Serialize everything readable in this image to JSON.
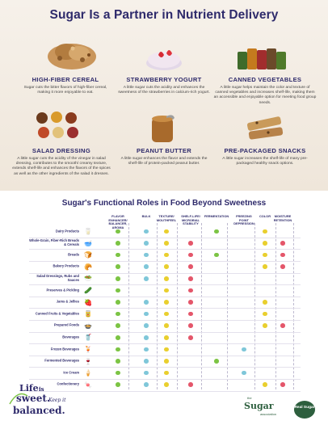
{
  "title": "Sugar Is a Partner in Nutrient Delivery",
  "tiles": [
    {
      "name": "HIGH-FIBER CEREAL",
      "desc": "Sugar cuts the bitter flavors of high-fiber cereal, making it more enjoyable to eat."
    },
    {
      "name": "STRAWBERRY YOGURT",
      "desc": "A little sugar cuts the acidity and enhances the sweetness of the strawberries in calcium-rich yogurt."
    },
    {
      "name": "CANNED VEGETABLES",
      "desc": "A little sugar helps maintain the color and texture of canned vegetables and increases shelf-life, making them an accessible and enjoyable option for meeting food group needs."
    },
    {
      "name": "SALAD DRESSING",
      "desc": "A little sugar cuts the acidity of the vinegar in salad dressing, contributes to the smooth/ creamy texture, extends shelf-life and enhances the flavors of the spices as well as the other ingredients of the salad it dresses."
    },
    {
      "name": "PEANUT BUTTER",
      "desc": "A little sugar enhances the flavor and extends the shelf-life of protein-packed peanut butter."
    },
    {
      "name": "PRE-PACKAGED SNACKS",
      "desc": "A little sugar increases the shelf-life of many pre-packaged healthy snack options."
    }
  ],
  "table": {
    "title": "Sugar's Functional Roles in Food Beyond Sweetness",
    "columns": [
      {
        "label": "FLAVOR ENHANCER/ BALANCER, AROMA",
        "color": "#7cc444"
      },
      {
        "label": "BULK",
        "color": "#7fc7d9"
      },
      {
        "label": "TEXTURE/ MOUTHFEEL",
        "color": "#e9cf2e"
      },
      {
        "label": "SHELF-LIFE/ MICROBIAL STABILITY",
        "color": "#e4566a"
      },
      {
        "label": "FERMENTATION",
        "color": "#7cc444"
      },
      {
        "label": "FREEZING POINT DEPRESSION",
        "color": "#7fc7d9"
      },
      {
        "label": "COLOR",
        "color": "#e9cf2e"
      },
      {
        "label": "MOISTURE RETENTION",
        "color": "#e4566a"
      }
    ],
    "rows": [
      {
        "label": "Dairy Products",
        "icon": "dairy-icon",
        "glyph": "🥛",
        "marks": [
          1,
          1,
          1,
          0,
          1,
          0,
          1,
          0
        ]
      },
      {
        "label": "Whole-Grain, Fiber-Rich Breads & Cereals",
        "icon": "cereal-icon",
        "glyph": "🥣",
        "marks": [
          1,
          1,
          1,
          1,
          0,
          0,
          1,
          1
        ]
      },
      {
        "label": "Breads",
        "icon": "bread-icon",
        "glyph": "🍞",
        "marks": [
          1,
          1,
          1,
          1,
          1,
          0,
          1,
          1
        ]
      },
      {
        "label": "Bakery Products",
        "icon": "bakery-icon",
        "glyph": "🥐",
        "marks": [
          1,
          1,
          1,
          1,
          0,
          0,
          1,
          1
        ]
      },
      {
        "label": "Salad Dressings, Rubs and Sauces",
        "icon": "dressing-icon",
        "glyph": "🥗",
        "marks": [
          1,
          1,
          1,
          1,
          0,
          0,
          0,
          0
        ]
      },
      {
        "label": "Preserves & Pickling",
        "icon": "pickle-icon",
        "glyph": "🥒",
        "marks": [
          1,
          0,
          1,
          1,
          0,
          0,
          0,
          0
        ]
      },
      {
        "label": "Jams & Jellies",
        "icon": "jam-icon",
        "glyph": "🍓",
        "marks": [
          1,
          1,
          1,
          1,
          0,
          0,
          1,
          0
        ]
      },
      {
        "label": "Canned Fruits & Vegetables",
        "icon": "canned-icon",
        "glyph": "🥫",
        "marks": [
          1,
          1,
          1,
          1,
          0,
          0,
          1,
          0
        ]
      },
      {
        "label": "Prepared Foods",
        "icon": "prepared-food-icon",
        "glyph": "🍲",
        "marks": [
          1,
          1,
          1,
          1,
          0,
          0,
          1,
          1
        ]
      },
      {
        "label": "Beverages",
        "icon": "beverage-icon",
        "glyph": "🥤",
        "marks": [
          1,
          1,
          1,
          1,
          0,
          0,
          0,
          0
        ]
      },
      {
        "label": "Frozen Beverages",
        "icon": "frozen-beverage-icon",
        "glyph": "🍹",
        "marks": [
          1,
          1,
          1,
          0,
          0,
          1,
          0,
          0
        ]
      },
      {
        "label": "Fermented Beverages",
        "icon": "fermented-beverage-icon",
        "glyph": "🍷",
        "marks": [
          1,
          1,
          1,
          0,
          1,
          0,
          0,
          0
        ]
      },
      {
        "label": "Ice Cream",
        "icon": "ice-cream-icon",
        "glyph": "🍦",
        "marks": [
          1,
          1,
          1,
          0,
          0,
          1,
          0,
          0
        ]
      },
      {
        "label": "Confectionery",
        "icon": "candy-icon",
        "glyph": "🍬",
        "marks": [
          1,
          1,
          1,
          1,
          0,
          0,
          1,
          1
        ]
      }
    ]
  },
  "footer": {
    "life_line1": "Life",
    "life_line2": "is",
    "life_line3": "sweet.",
    "life_keep": "Keep it",
    "life_balanced": "balanced.",
    "assoc_the": "the",
    "assoc_name": "Sugar",
    "assoc_sub": "association",
    "badge_text": "Real Sugar"
  }
}
